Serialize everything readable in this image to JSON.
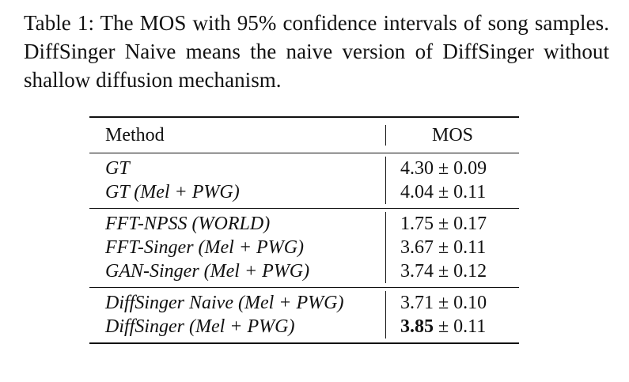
{
  "caption": "Table 1: The MOS with 95% confidence intervals of song samples. DiffSinger Naive means the naive version of DiffSinger without shallow diffusion mechanism.",
  "table": {
    "headers": {
      "method": "Method",
      "mos": "MOS"
    },
    "groups": [
      [
        {
          "method": "GT",
          "mos_value": "4.30",
          "mos_ci": "± 0.09"
        },
        {
          "method": "GT (Mel + PWG)",
          "mos_value": "4.04",
          "mos_ci": "± 0.11"
        }
      ],
      [
        {
          "method": "FFT-NPSS (WORLD)",
          "mos_value": "1.75",
          "mos_ci": "± 0.17"
        },
        {
          "method": "FFT-Singer (Mel + PWG)",
          "mos_value": "3.67",
          "mos_ci": "± 0.11"
        },
        {
          "method": "GAN-Singer (Mel + PWG)",
          "mos_value": "3.74",
          "mos_ci": "± 0.12"
        }
      ],
      [
        {
          "method": "DiffSinger Naive (Mel + PWG)",
          "mos_value": "3.71",
          "mos_ci": "± 0.10"
        },
        {
          "method": "DiffSinger (Mel + PWG)",
          "mos_value": "3.85",
          "mos_ci": "± 0.11",
          "bold": true
        }
      ]
    ]
  }
}
